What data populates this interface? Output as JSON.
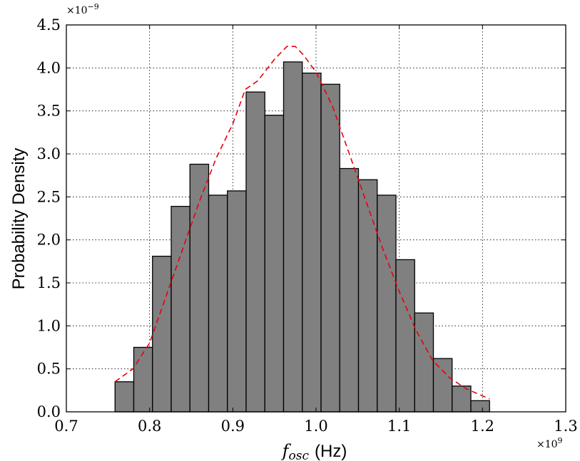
{
  "chart_data": {
    "type": "bar",
    "title": "",
    "xlabel": "f_osc (Hz)",
    "xlabel_var": "f",
    "xlabel_sub": "osc",
    "xlabel_unit": "(Hz)",
    "ylabel": "Probability Density",
    "x_multiplier": "×10",
    "x_multiplier_exp": "9",
    "y_multiplier": "×10",
    "y_multiplier_exp": "−9",
    "xlim": [
      0.7,
      1.3
    ],
    "ylim": [
      0.0,
      4.5
    ],
    "x_ticks": [
      0.7,
      0.8,
      0.9,
      1.0,
      1.1,
      1.2,
      1.3
    ],
    "x_tick_labels": [
      "0.7",
      "0.8",
      "0.9",
      "1.0",
      "1.1",
      "1.2",
      "1.3"
    ],
    "y_ticks": [
      0.0,
      0.5,
      1.0,
      1.5,
      2.0,
      2.5,
      3.0,
      3.5,
      4.0,
      4.5
    ],
    "y_tick_labels": [
      "0.0",
      "0.5",
      "1.0",
      "1.5",
      "2.0",
      "2.5",
      "3.0",
      "3.5",
      "4.0",
      "4.5"
    ],
    "grid": true,
    "bar_color": "#808080",
    "bar_edge_color": "#000000",
    "curve_color": "#e8000b",
    "histogram": {
      "bin_edges": [
        0.7585,
        0.781,
        0.8035,
        0.826,
        0.8485,
        0.871,
        0.8935,
        0.916,
        0.9385,
        0.961,
        0.9835,
        1.006,
        1.0285,
        1.051,
        1.0735,
        1.096,
        1.1185,
        1.141,
        1.1635,
        1.186,
        1.2085
      ],
      "values": [
        0.35,
        0.75,
        1.81,
        2.39,
        2.88,
        2.52,
        2.57,
        3.72,
        3.45,
        4.07,
        3.94,
        3.81,
        2.83,
        2.7,
        2.52,
        1.77,
        1.15,
        0.62,
        0.3,
        0.13
      ]
    },
    "curve": {
      "style": "dashed",
      "x": [
        0.7585,
        0.78,
        0.8,
        0.82,
        0.84,
        0.86,
        0.88,
        0.9,
        0.915,
        0.93,
        0.95,
        0.965,
        0.975,
        0.985,
        1.0,
        1.02,
        1.04,
        1.06,
        1.08,
        1.1,
        1.12,
        1.14,
        1.16,
        1.18,
        1.2085
      ],
      "y": [
        0.35,
        0.5,
        0.8,
        1.35,
        1.9,
        2.45,
        2.95,
        3.35,
        3.75,
        3.85,
        4.1,
        4.25,
        4.25,
        4.15,
        3.95,
        3.55,
        3.0,
        2.45,
        1.9,
        1.4,
        0.95,
        0.6,
        0.4,
        0.27,
        0.15
      ]
    }
  }
}
